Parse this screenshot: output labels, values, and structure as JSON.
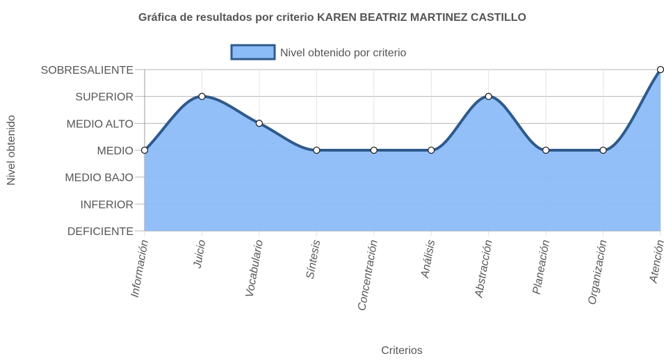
{
  "chart_data": {
    "type": "area",
    "title": "Gráfica de resultados por criterio KAREN BEATRIZ MARTINEZ CASTILLO",
    "xlabel": "Criterios",
    "ylabel": "Nivel obtenido",
    "categories": [
      "Información",
      "Juicio",
      "Vocabulario",
      "Síntesis",
      "Concentración",
      "Análisis",
      "Abstracción",
      "Planeación",
      "Organización",
      "Atención"
    ],
    "y_levels": [
      "DEFICIENTE",
      "INFERIOR",
      "MEDIO BAJO",
      "MEDIO",
      "MEDIO ALTO",
      "SUPERIOR",
      "SOBRESALIENTE"
    ],
    "ylim": [
      1,
      7
    ],
    "series": [
      {
        "name": "Nivel obtenido por criterio",
        "values": [
          4,
          6,
          5,
          4,
          4,
          4,
          6,
          4,
          4,
          7
        ],
        "fill_color": "#8cbcf8",
        "line_color": "#2f5a8c"
      }
    ],
    "legend_position": "top",
    "grid": true
  }
}
